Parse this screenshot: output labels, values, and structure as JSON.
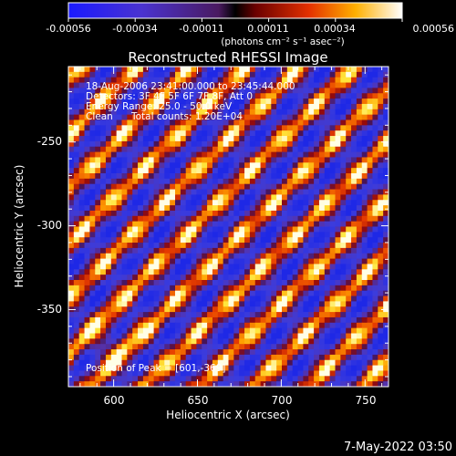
{
  "colorbar": {
    "tick_labels": [
      "-0.00056",
      "-0.00034",
      "-0.00011",
      "0.00011",
      "0.00034",
      "0.00056"
    ],
    "units_label": "(photons cm⁻² s⁻¹ asec⁻²)"
  },
  "plot": {
    "title": "Reconstructed RHESSI Image",
    "xlabel": "Heliocentric X (arcsec)",
    "ylabel": "Heliocentric Y (arcsec)",
    "x_ticks": [
      "600",
      "650",
      "700",
      "750"
    ],
    "y_ticks": [
      "-250",
      "-300",
      "-350"
    ]
  },
  "annotations": {
    "time_range": "18-Aug-2006 23:41:00.000 to 23:45:44.000",
    "detectors": "Detectors: 3F 4F 5F 6F 7F 8F, Att 0",
    "energy_range": "Energy Range: 25.0 - 50.0 keV",
    "method": "Clean",
    "total_counts": "Total counts: 1.20E+04",
    "peak_position": "Position of Peak = [601,-369]"
  },
  "footer": {
    "timestamp": "7-May-2022 03:50"
  },
  "chart_data": {
    "type": "heatmap",
    "title": "Reconstructed RHESSI Image",
    "xlabel": "Heliocentric X (arcsec)",
    "ylabel": "Heliocentric Y (arcsec)",
    "xlim": [
      573,
      764
    ],
    "ylim": [
      -396,
      -205
    ],
    "value_range": [
      -0.00056,
      0.00056
    ],
    "colormap": "blue-purple-red-yellow-white",
    "peak": [
      601,
      -369
    ],
    "x_tick_values": [
      600,
      650,
      700,
      750
    ],
    "y_tick_values": [
      -250,
      -300,
      -350
    ]
  }
}
